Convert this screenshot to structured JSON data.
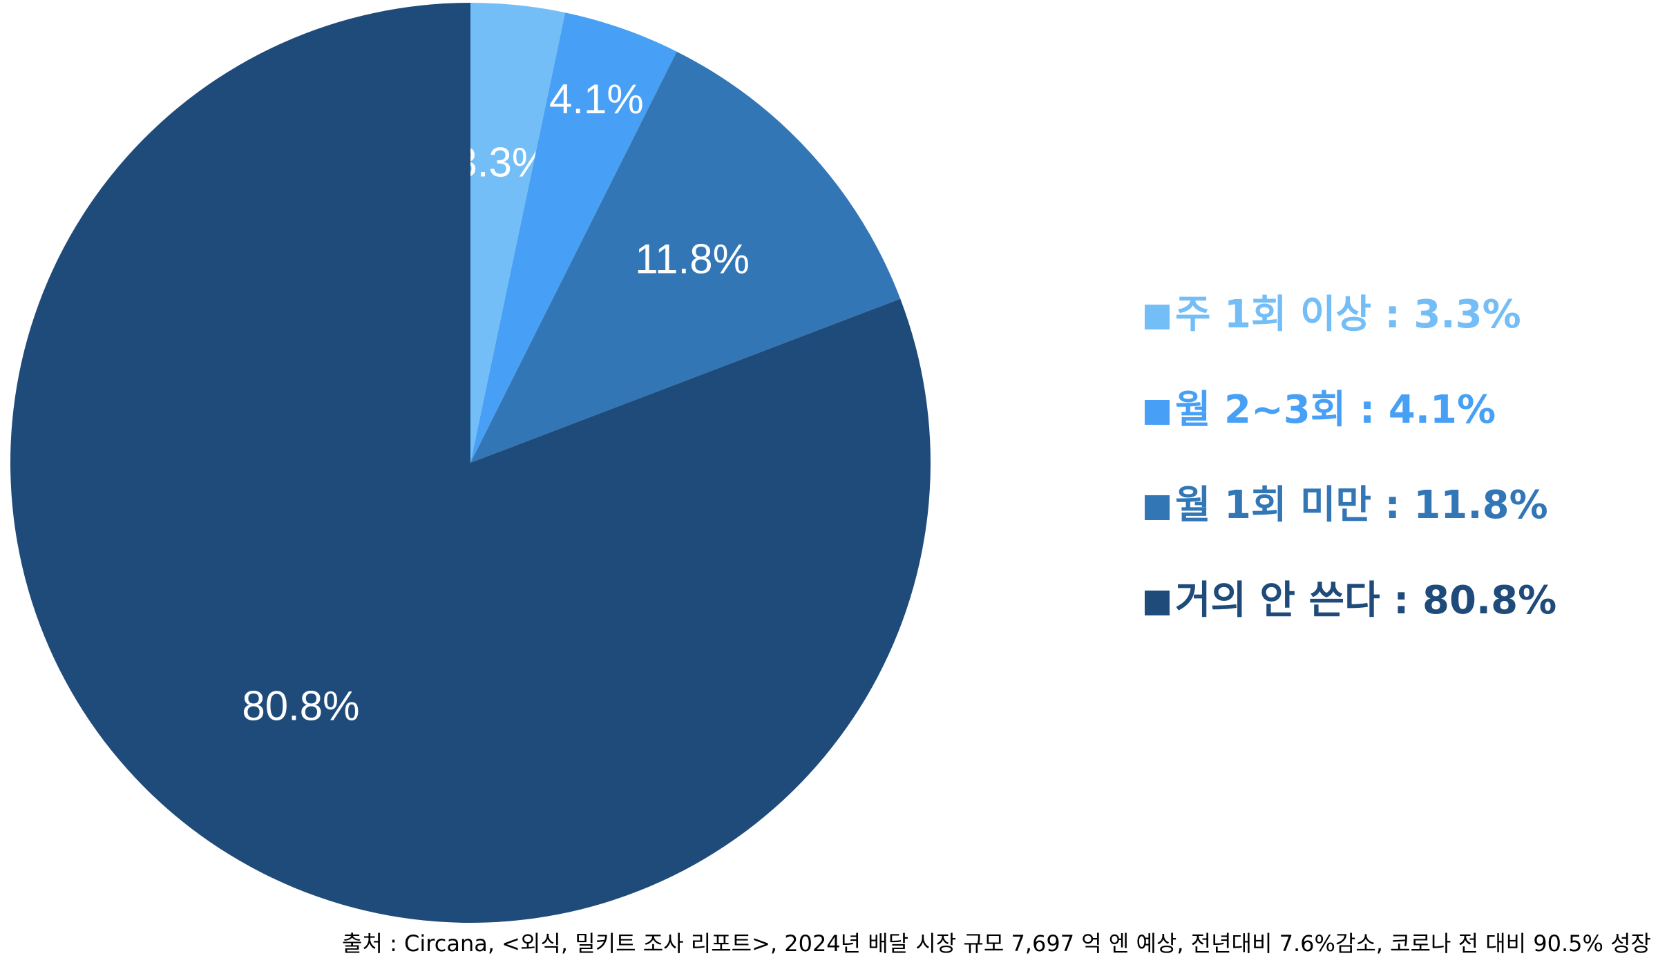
{
  "chart_data": {
    "type": "pie",
    "categories": [
      "주 1회 이상 : 3.3%",
      "월 2~3회 : 4.1%",
      "월 1회 미만 : 11.8%",
      "거의 안 쓴다 : 80.8%"
    ],
    "values": [
      3.3,
      4.1,
      11.8,
      80.8
    ],
    "value_labels": [
      "3.3%",
      "4.1%",
      "11.8%",
      "80.8%"
    ],
    "colors": [
      "#74bef8",
      "#47a0f5",
      "#3376b6",
      "#1f4b7a"
    ],
    "legend": "right",
    "source": "출처 : Circana, <외식, 밀키트 조사 리포트>, 2024년 배달 시장 규모 7,697 억 엔 예상, 전년대비 7.6%감소, 코로나 전 대비 90.5% 성장"
  }
}
